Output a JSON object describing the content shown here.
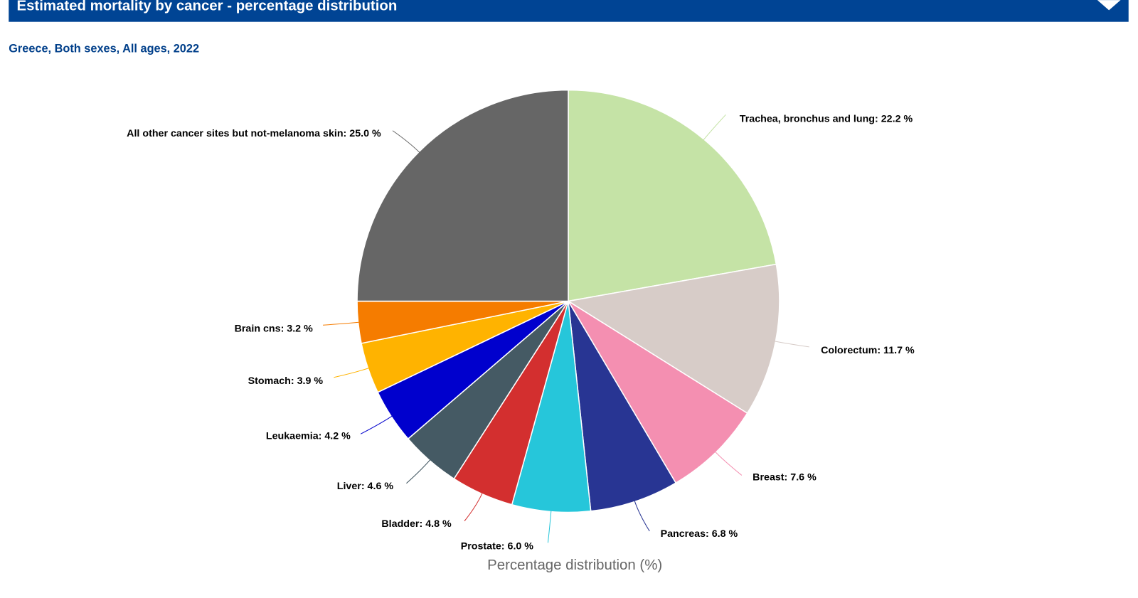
{
  "header": {
    "title": "Estimated mortality by cancer - percentage distribution",
    "toggle_icon": "chevron-down-icon"
  },
  "subtitle": "Greece, Both sexes, All ages, 2022",
  "colors": {
    "header_bg": "#004494",
    "subtitle": "#003f8a"
  },
  "chart_data": {
    "type": "pie",
    "title": "Estimated mortality by cancer - percentage distribution",
    "subtitle": "Greece, Both sexes, All ages, 2022",
    "xlabel": "Percentage distribution (%)",
    "unit": "%",
    "start": "top-clockwise",
    "slices": [
      {
        "name": "Trachea, bronchus and lung",
        "value": 22.2,
        "label": "Trachea, bronchus and lung: 22.2 %",
        "color": "#c5e3a6"
      },
      {
        "name": "Colorectum",
        "value": 11.7,
        "label": "Colorectum: 11.7 %",
        "color": "#d7ccc8"
      },
      {
        "name": "Breast",
        "value": 7.6,
        "label": "Breast: 7.6 %",
        "color": "#f48fb1"
      },
      {
        "name": "Pancreas",
        "value": 6.8,
        "label": "Pancreas: 6.8 %",
        "color": "#283593"
      },
      {
        "name": "Prostate",
        "value": 6.0,
        "label": "Prostate: 6.0 %",
        "color": "#26c6da"
      },
      {
        "name": "Bladder",
        "value": 4.8,
        "label": "Bladder: 4.8 %",
        "color": "#d32f2f"
      },
      {
        "name": "Liver",
        "value": 4.6,
        "label": "Liver: 4.6 %",
        "color": "#455a64"
      },
      {
        "name": "Leukaemia",
        "value": 4.2,
        "label": "Leukaemia: 4.2 %",
        "color": "#0000cd"
      },
      {
        "name": "Stomach",
        "value": 3.9,
        "label": "Stomach: 3.9 %",
        "color": "#ffb300"
      },
      {
        "name": "Brain cns",
        "value": 3.2,
        "label": "Brain cns: 3.2 %",
        "color": "#f57c00"
      },
      {
        "name": "All other cancer sites but not-melanoma skin",
        "value": 25.0,
        "label": "All other cancer sites but not-melanoma skin: 25.0 %",
        "color": "#666666"
      }
    ]
  }
}
